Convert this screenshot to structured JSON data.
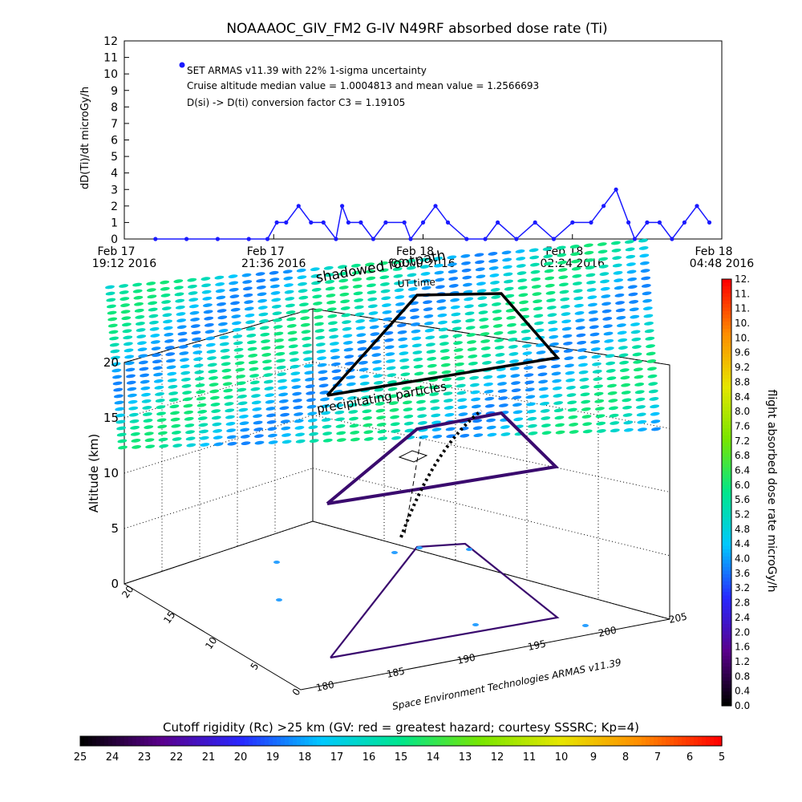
{
  "chart_data": [
    {
      "type": "scatter",
      "title": "NOAAAOC_GIV_FM2 G-IV   N49RF  absorbed dose rate (Ti)",
      "ylabel": "dD(Ti)/dt microGy/h",
      "xlabel": "UT time",
      "ylim": [
        0,
        12
      ],
      "yticks": [
        "0",
        "1",
        "2",
        "3",
        "4",
        "5",
        "6",
        "7",
        "8",
        "9",
        "10",
        "11",
        "12"
      ],
      "xticks": [
        {
          "day": "Feb 17",
          "time": "19:12 2016"
        },
        {
          "day": "Feb 17",
          "time": "21:36 2016"
        },
        {
          "day": "Feb 18",
          "time": "00:00 2016"
        },
        {
          "day": "Feb 18",
          "time": "02:24 2016"
        },
        {
          "day": "Feb 18",
          "time": "04:48 2016"
        }
      ],
      "legend": {
        "label": "SET ARMAS v11.39 with 22% 1-sigma uncertainty",
        "line2": "Cruise altitude median value = 1.0004813 and mean value = 1.2566693",
        "line3": "D(si) -> D(ti) conversion factor C3 = 1.19105",
        "placement": "top-left"
      },
      "series": [
        {
          "name": "SET ARMAS v11.39",
          "color": "#1a1aff",
          "x_hours_label": "hours after Feb 17 19:12",
          "x": [
            0.5,
            1.0,
            1.5,
            2.0,
            2.3,
            2.45,
            2.6,
            2.8,
            3.0,
            3.2,
            3.4,
            3.5,
            3.6,
            3.8,
            4.0,
            4.2,
            4.5,
            4.6,
            4.8,
            5.0,
            5.2,
            5.5,
            5.8,
            6.0,
            6.3,
            6.6,
            6.9,
            7.2,
            7.5,
            7.7,
            7.9,
            8.1,
            8.2,
            8.4,
            8.6,
            8.8,
            9.0,
            9.2,
            9.4
          ],
          "values": [
            0,
            0,
            0,
            0,
            0,
            1,
            1,
            2,
            1,
            1,
            0,
            2,
            1,
            1,
            0,
            1,
            1,
            0,
            1,
            2,
            1,
            0,
            0,
            1,
            0,
            1,
            0,
            1,
            1,
            2,
            3,
            1,
            0,
            1,
            1,
            0,
            1,
            2,
            1
          ]
        }
      ]
    },
    {
      "type": "surface3d",
      "zlabel": "Altitude (km)",
      "zticks": [
        "0",
        "5",
        "10",
        "15",
        "20"
      ],
      "xticks": [
        "180",
        "185",
        "190",
        "195",
        "200",
        "205"
      ],
      "yticks": [
        "0",
        "5",
        "10",
        "15",
        "20"
      ],
      "annotations": [
        "shadowed footpath",
        "precipitating particles",
        "UT time"
      ],
      "credit": "Space Environment Technologies ARMAS v11.39"
    }
  ],
  "colorbars": {
    "right": {
      "title": "flight absorbed dose rate microGy/h",
      "labels": [
        "0.0",
        "0.4",
        "0.8",
        "1.2",
        "1.6",
        "2.0",
        "2.4",
        "2.8",
        "3.2",
        "3.6",
        "4.0",
        "4.4",
        "4.8",
        "5.2",
        "5.6",
        "6.0",
        "6.4",
        "6.8",
        "7.2",
        "7.6",
        "8.0",
        "8.4",
        "8.8",
        "9.2",
        "9.6",
        "10.",
        "10.",
        "11.",
        "11.",
        "12."
      ]
    },
    "bottom": {
      "title": "Cutoff rigidity (Rc) >25 km (GV: red = greatest hazard; courtesy SSSRC; Kp=4)",
      "labels": [
        "25",
        "24",
        "23",
        "22",
        "21",
        "20",
        "19",
        "18",
        "17",
        "16",
        "15",
        "14",
        "13",
        "12",
        "11",
        "10",
        "9",
        "8",
        "7",
        "6",
        "5"
      ]
    }
  }
}
